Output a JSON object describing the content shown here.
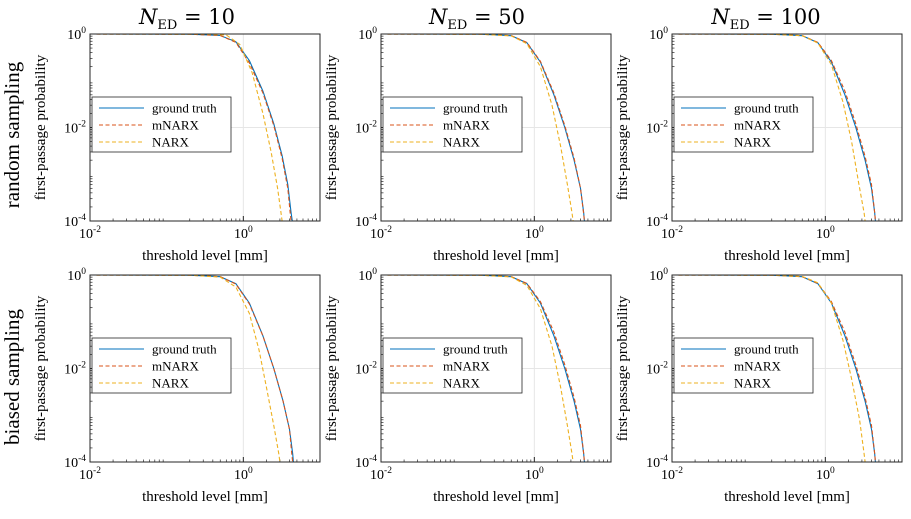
{
  "column_titles": [
    {
      "symbol": "N",
      "subscript": "ED",
      "value": " = 10"
    },
    {
      "symbol": "N",
      "subscript": "ED",
      "value": " = 50"
    },
    {
      "symbol": "N",
      "subscript": "ED",
      "value": " = 100"
    }
  ],
  "row_titles": [
    "random sampling",
    "biased sampling"
  ],
  "colors": {
    "ground_truth": "#0072bd",
    "mNARX": "#d95319",
    "NARX": "#edb120",
    "axes": "#262626",
    "grid": "#e6e6e6"
  },
  "chart_data": [
    {
      "type": "line",
      "row": "random sampling",
      "column": "N_ED = 10",
      "xlabel": "threshold level [mm]",
      "ylabel": "first-passage probability",
      "x_scale": "log",
      "y_scale": "log",
      "xlim": [
        0.01,
        10
      ],
      "ylim": [
        0.0001,
        1
      ],
      "xticks": [
        "10-2",
        "100"
      ],
      "yticks": [
        "10-4",
        "10-2",
        "100"
      ],
      "grid": true,
      "legend": "center-left",
      "series": [
        {
          "name": "ground truth",
          "style": "solid",
          "points": [
            [
              0.01,
              1
            ],
            [
              0.2,
              0.99
            ],
            [
              0.5,
              0.93
            ],
            [
              0.8,
              0.68
            ],
            [
              1.2,
              0.27
            ],
            [
              1.8,
              0.06
            ],
            [
              2.5,
              0.012
            ],
            [
              3.2,
              0.0025
            ],
            [
              3.8,
              0.0006
            ],
            [
              4.2,
              0.00015
            ],
            [
              4.35,
              0.0001
            ]
          ]
        },
        {
          "name": "mNARX",
          "style": "dashed",
          "points": [
            [
              0.01,
              1
            ],
            [
              0.2,
              0.99
            ],
            [
              0.5,
              0.93
            ],
            [
              0.8,
              0.66
            ],
            [
              1.2,
              0.24
            ],
            [
              1.8,
              0.055
            ],
            [
              2.5,
              0.011
            ],
            [
              3.2,
              0.0022
            ],
            [
              3.8,
              0.0005
            ],
            [
              4.1,
              0.00014
            ],
            [
              4.2,
              0.0001
            ]
          ]
        },
        {
          "name": "NARX",
          "style": "dashed",
          "points": [
            [
              0.01,
              1
            ],
            [
              0.3,
              0.99
            ],
            [
              0.6,
              0.95
            ],
            [
              0.9,
              0.6
            ],
            [
              1.3,
              0.15
            ],
            [
              1.8,
              0.02
            ],
            [
              2.3,
              0.003
            ],
            [
              2.8,
              0.0005
            ],
            [
              3.1,
              0.00015
            ],
            [
              3.2,
              0.0001
            ]
          ]
        }
      ]
    },
    {
      "type": "line",
      "row": "random sampling",
      "column": "N_ED = 50",
      "xlabel": "threshold level [mm]",
      "ylabel": "first-passage probability",
      "x_scale": "log",
      "y_scale": "log",
      "xlim": [
        0.01,
        10
      ],
      "ylim": [
        0.0001,
        1
      ],
      "xticks": [
        "10-2",
        "100"
      ],
      "yticks": [
        "10-4",
        "10-2",
        "100"
      ],
      "grid": true,
      "legend": "center-left",
      "series": [
        {
          "name": "ground truth",
          "style": "solid",
          "points": [
            [
              0.01,
              1
            ],
            [
              0.2,
              0.99
            ],
            [
              0.5,
              0.92
            ],
            [
              0.8,
              0.65
            ],
            [
              1.2,
              0.25
            ],
            [
              1.8,
              0.05
            ],
            [
              2.5,
              0.01
            ],
            [
              3.3,
              0.002
            ],
            [
              4,
              0.0005
            ],
            [
              4.4,
              0.00015
            ],
            [
              4.5,
              0.0001
            ]
          ]
        },
        {
          "name": "mNARX",
          "style": "dashed",
          "points": [
            [
              0.01,
              1
            ],
            [
              0.2,
              0.99
            ],
            [
              0.5,
              0.92
            ],
            [
              0.8,
              0.66
            ],
            [
              1.2,
              0.26
            ],
            [
              1.8,
              0.055
            ],
            [
              2.5,
              0.011
            ],
            [
              3.3,
              0.0022
            ],
            [
              4,
              0.0005
            ],
            [
              4.4,
              0.00014
            ],
            [
              4.5,
              0.0001
            ]
          ]
        },
        {
          "name": "NARX",
          "style": "dashed",
          "points": [
            [
              0.01,
              1
            ],
            [
              0.2,
              0.99
            ],
            [
              0.5,
              0.91
            ],
            [
              0.8,
              0.62
            ],
            [
              1.2,
              0.2
            ],
            [
              1.7,
              0.03
            ],
            [
              2.2,
              0.004
            ],
            [
              2.7,
              0.0006
            ],
            [
              3.1,
              0.00015
            ],
            [
              3.2,
              0.0001
            ]
          ]
        }
      ]
    },
    {
      "type": "line",
      "row": "random sampling",
      "column": "N_ED = 100",
      "xlabel": "threshold level [mm]",
      "ylabel": "first-passage probability",
      "x_scale": "log",
      "y_scale": "log",
      "xlim": [
        0.01,
        10
      ],
      "ylim": [
        0.0001,
        1
      ],
      "xticks": [
        "10-2",
        "100"
      ],
      "yticks": [
        "10-4",
        "10-2",
        "100"
      ],
      "grid": true,
      "legend": "center-left",
      "series": [
        {
          "name": "ground truth",
          "style": "solid",
          "points": [
            [
              0.01,
              1
            ],
            [
              0.2,
              0.99
            ],
            [
              0.5,
              0.92
            ],
            [
              0.8,
              0.65
            ],
            [
              1.2,
              0.25
            ],
            [
              1.8,
              0.05
            ],
            [
              2.5,
              0.01
            ],
            [
              3.3,
              0.002
            ],
            [
              4,
              0.0005
            ],
            [
              4.4,
              0.00015
            ],
            [
              4.5,
              0.0001
            ]
          ]
        },
        {
          "name": "mNARX",
          "style": "dashed",
          "points": [
            [
              0.01,
              1
            ],
            [
              0.2,
              0.99
            ],
            [
              0.5,
              0.92
            ],
            [
              0.8,
              0.66
            ],
            [
              1.2,
              0.27
            ],
            [
              1.8,
              0.06
            ],
            [
              2.5,
              0.012
            ],
            [
              3.3,
              0.0024
            ],
            [
              4,
              0.0006
            ],
            [
              4.4,
              0.00015
            ],
            [
              4.5,
              0.0001
            ]
          ]
        },
        {
          "name": "NARX",
          "style": "dashed",
          "points": [
            [
              0.01,
              1
            ],
            [
              0.2,
              0.99
            ],
            [
              0.5,
              0.92
            ],
            [
              0.8,
              0.64
            ],
            [
              1.2,
              0.22
            ],
            [
              1.7,
              0.035
            ],
            [
              2.2,
              0.005
            ],
            [
              2.7,
              0.0007
            ],
            [
              3.2,
              0.00015
            ],
            [
              3.3,
              0.0001
            ]
          ]
        }
      ]
    },
    {
      "type": "line",
      "row": "biased sampling",
      "column": "N_ED = 10",
      "xlabel": "threshold level [mm]",
      "ylabel": "first-passage probability",
      "x_scale": "log",
      "y_scale": "log",
      "xlim": [
        0.01,
        10
      ],
      "ylim": [
        0.0001,
        1
      ],
      "xticks": [
        "10-2",
        "100"
      ],
      "yticks": [
        "10-4",
        "10-2",
        "100"
      ],
      "grid": true,
      "legend": "center-left",
      "series": [
        {
          "name": "ground truth",
          "style": "solid",
          "points": [
            [
              0.01,
              1
            ],
            [
              0.2,
              0.99
            ],
            [
              0.5,
              0.92
            ],
            [
              0.8,
              0.65
            ],
            [
              1.2,
              0.25
            ],
            [
              1.8,
              0.05
            ],
            [
              2.5,
              0.01
            ],
            [
              3.3,
              0.002
            ],
            [
              4,
              0.0005
            ],
            [
              4.4,
              0.00015
            ],
            [
              4.5,
              0.0001
            ]
          ]
        },
        {
          "name": "mNARX",
          "style": "dashed",
          "points": [
            [
              0.01,
              1
            ],
            [
              0.2,
              0.99
            ],
            [
              0.5,
              0.92
            ],
            [
              0.8,
              0.64
            ],
            [
              1.2,
              0.24
            ],
            [
              1.8,
              0.05
            ],
            [
              2.5,
              0.01
            ],
            [
              3.3,
              0.002
            ],
            [
              4,
              0.0005
            ],
            [
              4.3,
              0.00014
            ],
            [
              4.4,
              0.0001
            ]
          ]
        },
        {
          "name": "NARX",
          "style": "dashed",
          "points": [
            [
              0.01,
              1
            ],
            [
              0.2,
              0.99
            ],
            [
              0.5,
              0.9
            ],
            [
              0.8,
              0.55
            ],
            [
              1.2,
              0.15
            ],
            [
              1.6,
              0.025
            ],
            [
              2,
              0.004
            ],
            [
              2.5,
              0.0006
            ],
            [
              2.9,
              0.00015
            ],
            [
              3,
              0.0001
            ]
          ]
        }
      ]
    },
    {
      "type": "line",
      "row": "biased sampling",
      "column": "N_ED = 50",
      "xlabel": "threshold level [mm]",
      "ylabel": "first-passage probability",
      "x_scale": "log",
      "y_scale": "log",
      "xlim": [
        0.01,
        10
      ],
      "ylim": [
        0.0001,
        1
      ],
      "xticks": [
        "10-2",
        "100"
      ],
      "yticks": [
        "10-4",
        "10-2",
        "100"
      ],
      "grid": true,
      "legend": "center-left",
      "series": [
        {
          "name": "ground truth",
          "style": "solid",
          "points": [
            [
              0.01,
              1
            ],
            [
              0.2,
              0.99
            ],
            [
              0.5,
              0.92
            ],
            [
              0.8,
              0.65
            ],
            [
              1.2,
              0.25
            ],
            [
              1.8,
              0.05
            ],
            [
              2.5,
              0.01
            ],
            [
              3.3,
              0.002
            ],
            [
              4,
              0.0005
            ],
            [
              4.4,
              0.00015
            ],
            [
              4.5,
              0.0001
            ]
          ]
        },
        {
          "name": "mNARX",
          "style": "dashed",
          "points": [
            [
              0.01,
              1
            ],
            [
              0.2,
              0.99
            ],
            [
              0.5,
              0.92
            ],
            [
              0.8,
              0.66
            ],
            [
              1.2,
              0.27
            ],
            [
              1.8,
              0.06
            ],
            [
              2.5,
              0.012
            ],
            [
              3.3,
              0.0024
            ],
            [
              4,
              0.0006
            ],
            [
              4.4,
              0.00015
            ],
            [
              4.5,
              0.0001
            ]
          ]
        },
        {
          "name": "NARX",
          "style": "dashed",
          "points": [
            [
              0.01,
              1
            ],
            [
              0.2,
              0.99
            ],
            [
              0.5,
              0.91
            ],
            [
              0.8,
              0.6
            ],
            [
              1.2,
              0.19
            ],
            [
              1.7,
              0.03
            ],
            [
              2.2,
              0.004
            ],
            [
              2.7,
              0.0006
            ],
            [
              3.1,
              0.00015
            ],
            [
              3.2,
              0.0001
            ]
          ]
        }
      ]
    },
    {
      "type": "line",
      "row": "biased sampling",
      "column": "N_ED = 100",
      "xlabel": "threshold level [mm]",
      "ylabel": "first-passage probability",
      "x_scale": "log",
      "y_scale": "log",
      "xlim": [
        0.01,
        10
      ],
      "ylim": [
        0.0001,
        1
      ],
      "xticks": [
        "10-2",
        "100"
      ],
      "yticks": [
        "10-4",
        "10-2",
        "100"
      ],
      "grid": true,
      "legend": "center-left",
      "series": [
        {
          "name": "ground truth",
          "style": "solid",
          "points": [
            [
              0.01,
              1
            ],
            [
              0.2,
              0.99
            ],
            [
              0.5,
              0.92
            ],
            [
              0.8,
              0.65
            ],
            [
              1.2,
              0.25
            ],
            [
              1.8,
              0.05
            ],
            [
              2.5,
              0.01
            ],
            [
              3.3,
              0.002
            ],
            [
              4,
              0.0005
            ],
            [
              4.4,
              0.00015
            ],
            [
              4.5,
              0.0001
            ]
          ]
        },
        {
          "name": "mNARX",
          "style": "dashed",
          "points": [
            [
              0.01,
              1
            ],
            [
              0.2,
              0.99
            ],
            [
              0.5,
              0.92
            ],
            [
              0.8,
              0.66
            ],
            [
              1.2,
              0.27
            ],
            [
              1.8,
              0.06
            ],
            [
              2.5,
              0.012
            ],
            [
              3.3,
              0.0024
            ],
            [
              4,
              0.0006
            ],
            [
              4.4,
              0.00015
            ],
            [
              4.5,
              0.0001
            ]
          ]
        },
        {
          "name": "NARX",
          "style": "dashed",
          "points": [
            [
              0.01,
              1
            ],
            [
              0.2,
              0.99
            ],
            [
              0.5,
              0.93
            ],
            [
              0.8,
              0.68
            ],
            [
              1.2,
              0.25
            ],
            [
              1.7,
              0.04
            ],
            [
              2.2,
              0.006
            ],
            [
              2.8,
              0.0008
            ],
            [
              3.2,
              0.00015
            ],
            [
              3.3,
              0.0001
            ]
          ]
        }
      ]
    }
  ]
}
